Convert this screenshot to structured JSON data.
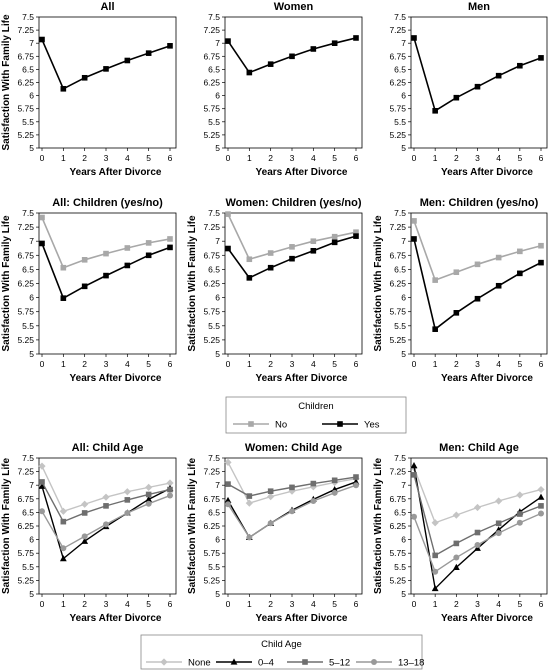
{
  "chart_data": [
    {
      "type": "line",
      "title": "All",
      "xlabel": "Years After Divorce",
      "ylabel": "Satisfaction With Family Life",
      "ylim": [
        5,
        7.5
      ],
      "x": [
        0,
        1,
        2,
        3,
        4,
        5,
        6
      ],
      "yticks": [
        "5",
        "5.25",
        "5.5",
        "5.75",
        "6",
        "6.25",
        "6.5",
        "6.75",
        "7",
        "7.25",
        "7.5"
      ],
      "xticks": [
        "0",
        "1",
        "2",
        "3",
        "4",
        "5",
        "6"
      ],
      "series": [
        {
          "style": "all",
          "values": [
            7.07,
            6.13,
            6.34,
            6.51,
            6.67,
            6.81,
            6.95
          ]
        }
      ]
    },
    {
      "type": "line",
      "title": "Women",
      "xlabel": "Years After Divorce",
      "ylabel": "",
      "ylim": [
        5,
        7.5
      ],
      "x": [
        0,
        1,
        2,
        3,
        4,
        5,
        6
      ],
      "yticks": [
        "5",
        "5.25",
        "5.5",
        "5.75",
        "6",
        "6.25",
        "6.5",
        "6.75",
        "7",
        "7.25",
        "7.5"
      ],
      "xticks": [
        "0",
        "1",
        "2",
        "3",
        "4",
        "5",
        "6"
      ],
      "series": [
        {
          "style": "all",
          "values": [
            7.04,
            6.44,
            6.6,
            6.75,
            6.89,
            7.0,
            7.1
          ]
        }
      ]
    },
    {
      "type": "line",
      "title": "Men",
      "xlabel": "Years After Divorce",
      "ylabel": "",
      "ylim": [
        5,
        7.5
      ],
      "x": [
        0,
        1,
        2,
        3,
        4,
        5,
        6
      ],
      "yticks": [
        "5",
        "5.25",
        "5.5",
        "5.75",
        "6",
        "6.25",
        "6.5",
        "6.75",
        "7",
        "7.25",
        "7.5"
      ],
      "xticks": [
        "0",
        "1",
        "2",
        "3",
        "4",
        "5",
        "6"
      ],
      "series": [
        {
          "style": "all",
          "values": [
            7.1,
            5.71,
            5.96,
            6.17,
            6.38,
            6.57,
            6.72
          ]
        }
      ]
    },
    {
      "type": "line",
      "title": "All: Children (yes/no)",
      "xlabel": "Years After Divorce",
      "ylabel": "Satisfaction With Family Life",
      "ylim": [
        5,
        7.5
      ],
      "x": [
        0,
        1,
        2,
        3,
        4,
        5,
        6
      ],
      "yticks": [
        "5",
        "5.25",
        "5.5",
        "5.75",
        "6",
        "6.25",
        "6.5",
        "6.75",
        "7",
        "7.25",
        "7.5"
      ],
      "xticks": [
        "0",
        "1",
        "2",
        "3",
        "4",
        "5",
        "6"
      ],
      "series": [
        {
          "name": "No",
          "style": "no",
          "values": [
            7.42,
            6.53,
            6.67,
            6.78,
            6.88,
            6.97,
            7.04
          ]
        },
        {
          "name": "Yes",
          "style": "yes",
          "values": [
            6.96,
            5.99,
            6.2,
            6.39,
            6.57,
            6.75,
            6.89
          ]
        }
      ]
    },
    {
      "type": "line",
      "title": "Women: Children (yes/no)",
      "xlabel": "Years After Divorce",
      "ylabel": "Satisfaction With Family Life",
      "ylim": [
        5,
        7.5
      ],
      "x": [
        0,
        1,
        2,
        3,
        4,
        5,
        6
      ],
      "yticks": [
        "5",
        "5.25",
        "5.5",
        "5.75",
        "6",
        "6.25",
        "6.5",
        "6.75",
        "7",
        "7.25",
        "7.5"
      ],
      "xticks": [
        "0",
        "1",
        "2",
        "3",
        "4",
        "5",
        "6"
      ],
      "series": [
        {
          "name": "No",
          "style": "no",
          "values": [
            7.48,
            6.68,
            6.79,
            6.9,
            7.0,
            7.08,
            7.16
          ]
        },
        {
          "name": "Yes",
          "style": "yes",
          "values": [
            6.87,
            6.35,
            6.53,
            6.69,
            6.83,
            6.98,
            7.09
          ]
        }
      ]
    },
    {
      "type": "line",
      "title": "Men: Children (yes/no)",
      "xlabel": "Years After Divorce",
      "ylabel": "Satisfaction With Family Life",
      "ylim": [
        5,
        7.5
      ],
      "x": [
        0,
        1,
        2,
        3,
        4,
        5,
        6
      ],
      "yticks": [
        "5",
        "5.25",
        "5.5",
        "5.75",
        "6",
        "6.25",
        "6.5",
        "6.75",
        "7",
        "7.25",
        "7.5"
      ],
      "xticks": [
        "0",
        "1",
        "2",
        "3",
        "4",
        "5",
        "6"
      ],
      "series": [
        {
          "name": "No",
          "style": "no",
          "values": [
            7.36,
            6.31,
            6.45,
            6.59,
            6.71,
            6.82,
            6.92
          ]
        },
        {
          "name": "Yes",
          "style": "yes",
          "values": [
            7.04,
            5.44,
            5.73,
            5.98,
            6.21,
            6.43,
            6.62
          ]
        }
      ]
    },
    {
      "type": "line",
      "title": "All: Child Age",
      "xlabel": "Years After Divorce",
      "ylabel": "Satisfaction With Family Life",
      "ylim": [
        5,
        7.5
      ],
      "x": [
        0,
        1,
        2,
        3,
        4,
        5,
        6
      ],
      "yticks": [
        "5",
        "5.25",
        "5.5",
        "5.75",
        "6",
        "6.25",
        "6.5",
        "6.75",
        "7",
        "7.25",
        "7.5"
      ],
      "xticks": [
        "0",
        "1",
        "2",
        "3",
        "4",
        "5",
        "6"
      ],
      "series": [
        {
          "name": "None",
          "style": "none",
          "values": [
            7.35,
            6.52,
            6.65,
            6.78,
            6.88,
            6.96,
            7.04
          ]
        },
        {
          "name": "0–4",
          "style": "age04",
          "values": [
            6.98,
            5.65,
            5.97,
            6.24,
            6.49,
            6.74,
            6.94
          ]
        },
        {
          "name": "5–12",
          "style": "age512",
          "values": [
            7.06,
            6.33,
            6.49,
            6.62,
            6.73,
            6.83,
            6.92
          ]
        },
        {
          "name": "13–18",
          "style": "age1318",
          "values": [
            6.52,
            5.84,
            6.06,
            6.28,
            6.49,
            6.66,
            6.81
          ]
        }
      ]
    },
    {
      "type": "line",
      "title": "Women: Child Age",
      "xlabel": "Years After Divorce",
      "ylabel": "Satisfaction With Family Life",
      "ylim": [
        5,
        7.5
      ],
      "x": [
        0,
        1,
        2,
        3,
        4,
        5,
        6
      ],
      "yticks": [
        "5",
        "5.25",
        "5.5",
        "5.75",
        "6",
        "6.25",
        "6.5",
        "6.75",
        "7",
        "7.25",
        "7.5"
      ],
      "xticks": [
        "0",
        "1",
        "2",
        "3",
        "4",
        "5",
        "6"
      ],
      "series": [
        {
          "name": "None",
          "style": "none",
          "values": [
            7.42,
            6.67,
            6.79,
            6.89,
            6.97,
            7.05,
            7.12
          ]
        },
        {
          "name": "0–4",
          "style": "age04",
          "values": [
            6.72,
            6.04,
            6.3,
            6.54,
            6.74,
            6.92,
            7.06
          ]
        },
        {
          "name": "5–12",
          "style": "age512",
          "values": [
            7.02,
            6.8,
            6.89,
            6.96,
            7.03,
            7.09,
            7.15
          ]
        },
        {
          "name": "13–18",
          "style": "age1318",
          "values": [
            6.65,
            6.04,
            6.3,
            6.52,
            6.71,
            6.86,
            7.0
          ]
        }
      ]
    },
    {
      "type": "line",
      "title": "Men: Child Age",
      "xlabel": "Years After Divorce",
      "ylabel": "Satisfaction With Family Life",
      "ylim": [
        5,
        7.5
      ],
      "x": [
        0,
        1,
        2,
        3,
        4,
        5,
        6
      ],
      "yticks": [
        "5",
        "5.25",
        "5.5",
        "5.75",
        "6",
        "6.25",
        "6.5",
        "6.75",
        "7",
        "7.25",
        "7.5"
      ],
      "xticks": [
        "0",
        "1",
        "2",
        "3",
        "4",
        "5",
        "6"
      ],
      "series": [
        {
          "name": "None",
          "style": "none",
          "values": [
            7.32,
            6.31,
            6.45,
            6.59,
            6.71,
            6.82,
            6.92
          ]
        },
        {
          "name": "0–4",
          "style": "age04",
          "values": [
            7.36,
            5.1,
            5.49,
            5.84,
            6.18,
            6.51,
            6.78
          ]
        },
        {
          "name": "5–12",
          "style": "age512",
          "values": [
            7.19,
            5.71,
            5.93,
            6.13,
            6.3,
            6.47,
            6.62
          ]
        },
        {
          "name": "13–18",
          "style": "age1318",
          "values": [
            6.42,
            5.41,
            5.67,
            5.9,
            6.12,
            6.31,
            6.48
          ]
        }
      ]
    }
  ],
  "legends": {
    "children": {
      "title": "Children",
      "items": [
        {
          "label": "No",
          "style": "no"
        },
        {
          "label": "Yes",
          "style": "yes"
        }
      ]
    },
    "child_age": {
      "title": "Child Age",
      "items": [
        {
          "label": "None",
          "style": "none"
        },
        {
          "label": "0–4",
          "style": "age04"
        },
        {
          "label": "5–12",
          "style": "age512"
        },
        {
          "label": "13–18",
          "style": "age1318"
        }
      ]
    }
  },
  "styles": {
    "all": {
      "color": "#000000",
      "marker": "square",
      "width": 1.6
    },
    "no": {
      "color": "#a8a8a8",
      "marker": "square",
      "width": 1.6
    },
    "yes": {
      "color": "#000000",
      "marker": "square",
      "width": 1.6
    },
    "none": {
      "color": "#c4c4c4",
      "marker": "diamond",
      "width": 1.4
    },
    "age04": {
      "color": "#000000",
      "marker": "triangle",
      "width": 1.4
    },
    "age512": {
      "color": "#6e6e6e",
      "marker": "square",
      "width": 1.4
    },
    "age1318": {
      "color": "#999999",
      "marker": "circle",
      "width": 1.4
    }
  }
}
